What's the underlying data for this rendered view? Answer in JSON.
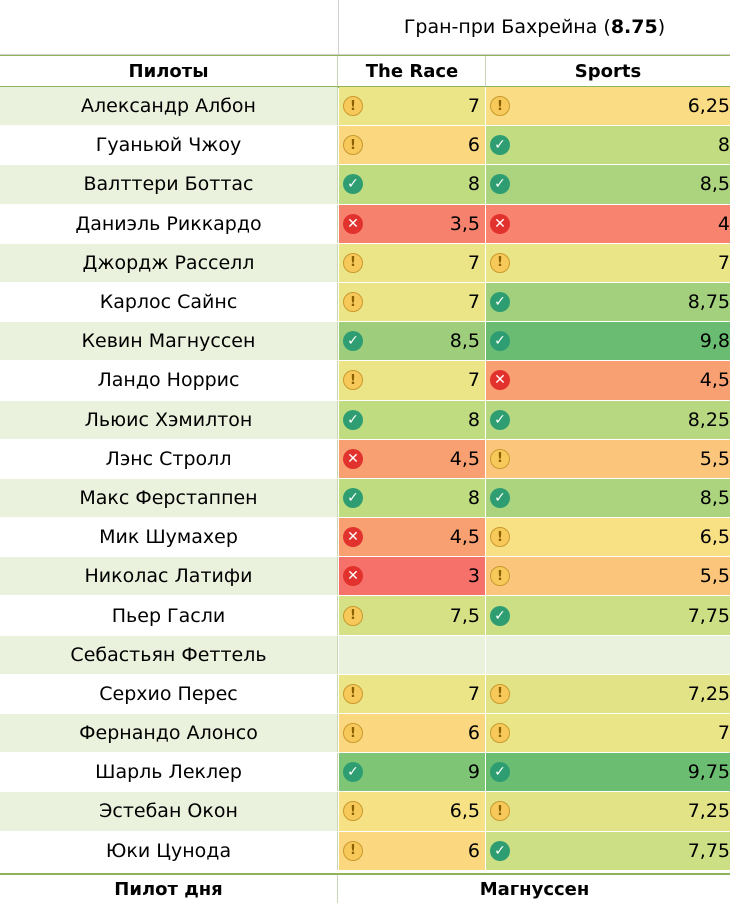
{
  "title": {
    "prefix": "Гран-при Бахрейна (",
    "value": "8.75",
    "suffix": ")"
  },
  "headers": {
    "drivers": "Пилоты",
    "source1": "The Race",
    "source2": "Sports"
  },
  "rows": [
    {
      "name": "Александр Албон",
      "race": "7",
      "race_icon": "warning",
      "race_color": "#ece588",
      "sports": "6,25",
      "sports_icon": "warning",
      "sports_color": "#f9dc84"
    },
    {
      "name": "Гуаньюй Чжоу",
      "race": "6",
      "race_icon": "warning",
      "race_color": "#fbd780",
      "sports": "8",
      "sports_icon": "check",
      "sports_color": "#c2dc82"
    },
    {
      "name": "Валттери Боттас",
      "race": "8",
      "race_icon": "check",
      "race_color": "#c0dc81",
      "sports": "8,5",
      "sports_icon": "check",
      "sports_color": "#acd47e"
    },
    {
      "name": "Даниэль Риккардо",
      "race": "3,5",
      "race_icon": "cross",
      "race_color": "#f6816d",
      "sports": "4",
      "sports_icon": "cross",
      "sports_color": "#f8836e"
    },
    {
      "name": "Джордж Расселл",
      "race": "7",
      "race_icon": "warning",
      "race_color": "#ece588",
      "sports": "7",
      "sports_icon": "warning",
      "sports_color": "#eae586"
    },
    {
      "name": "Карлос Сайнс",
      "race": "7",
      "race_icon": "warning",
      "race_color": "#ece588",
      "sports": "8,75",
      "sports_icon": "check",
      "sports_color": "#a3d07c"
    },
    {
      "name": "Кевин Магнуссен",
      "race": "8,5",
      "race_icon": "check",
      "race_color": "#9ecd7b",
      "sports": "9,8",
      "sports_icon": "check",
      "sports_color": "#69bc71"
    },
    {
      "name": "Ландо Норрис",
      "race": "7",
      "race_icon": "warning",
      "race_color": "#ece588",
      "sports": "4,5",
      "sports_icon": "cross",
      "sports_color": "#f9a072"
    },
    {
      "name": "Льюис Хэмилтон",
      "race": "8",
      "race_icon": "check",
      "race_color": "#c0dc81",
      "sports": "8,25",
      "sports_icon": "check",
      "sports_color": "#b7d880"
    },
    {
      "name": "Лэнс Стролл",
      "race": "4,5",
      "race_icon": "cross",
      "race_color": "#f8a071",
      "sports": "5,5",
      "sports_icon": "warning",
      "sports_color": "#fbc57b"
    },
    {
      "name": "Макс Ферстаппен",
      "race": "8",
      "race_icon": "check",
      "race_color": "#c0dc81",
      "sports": "8,5",
      "sports_icon": "check",
      "sports_color": "#acd47e"
    },
    {
      "name": "Мик Шумахер",
      "race": "4,5",
      "race_icon": "cross",
      "race_color": "#f8a071",
      "sports": "6,5",
      "sports_icon": "warning",
      "sports_color": "#f8e084"
    },
    {
      "name": "Николас Латифи",
      "race": "3",
      "race_icon": "cross",
      "race_color": "#f6716a",
      "sports": "5,5",
      "sports_icon": "warning",
      "sports_color": "#fbc57b"
    },
    {
      "name": "Пьер Гасли",
      "race": "7,5",
      "race_icon": "warning",
      "race_color": "#d6e185",
      "sports": "7,75",
      "sports_icon": "check",
      "sports_color": "#cddf84"
    },
    {
      "name": "Себастьян Феттель",
      "race": "",
      "race_icon": "",
      "race_color": "#eaf1dd",
      "sports": "",
      "sports_icon": "",
      "sports_color": "#eaf1dd"
    },
    {
      "name": "Серхио Перес",
      "race": "7",
      "race_icon": "warning",
      "race_color": "#ece588",
      "sports": "7,25",
      "sports_icon": "warning",
      "sports_color": "#e1e386"
    },
    {
      "name": "Фернандо Алонсо",
      "race": "6",
      "race_icon": "warning",
      "race_color": "#fbd780",
      "sports": "7",
      "sports_icon": "warning",
      "sports_color": "#eae586"
    },
    {
      "name": "Шарль Леклер",
      "race": "9",
      "race_icon": "check",
      "race_color": "#7ec576",
      "sports": "9,75",
      "sports_icon": "check",
      "sports_color": "#6abd71"
    },
    {
      "name": "Эстебан Окон",
      "race": "6,5",
      "race_icon": "warning",
      "race_color": "#f6e285",
      "sports": "7,25",
      "sports_icon": "warning",
      "sports_color": "#e1e386"
    },
    {
      "name": "Юки Цунода",
      "race": "6",
      "race_icon": "warning",
      "race_color": "#fbd780",
      "sports": "7,75",
      "sports_icon": "check",
      "sports_color": "#cddf84"
    }
  ],
  "footer": {
    "label": "Пилот дня",
    "value": "Магнуссен"
  }
}
